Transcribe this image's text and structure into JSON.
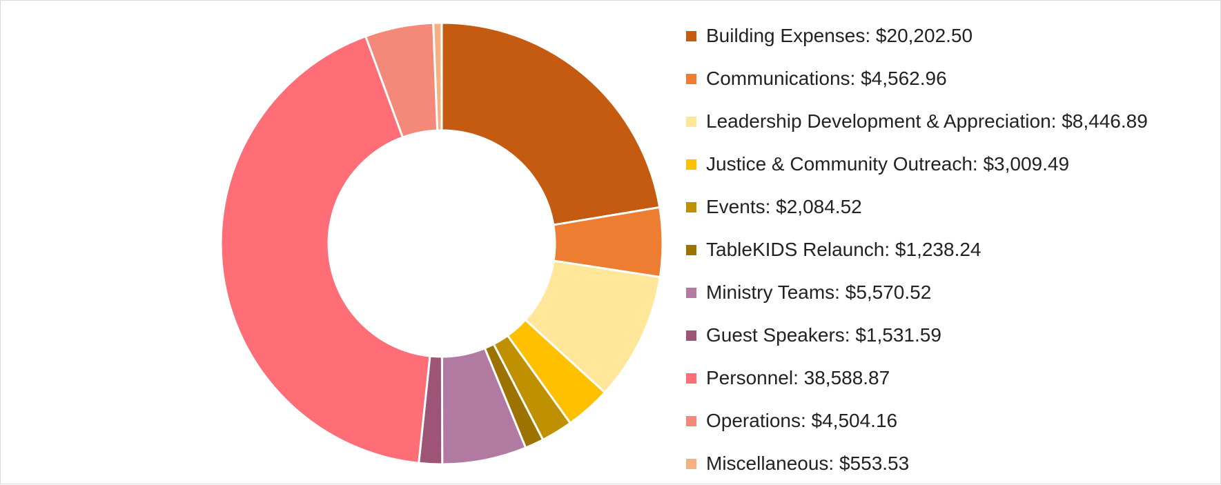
{
  "chart_data": {
    "type": "pie",
    "variant": "donut",
    "legend_position": "right",
    "start_angle_deg": 0,
    "direction": "clockwise",
    "slices": [
      {
        "label": "Building Expenses: $20,202.50",
        "value": 20202.5,
        "color": "#C55A11"
      },
      {
        "label": "Communications: $4,562.96",
        "value": 4562.96,
        "color": "#ED7D31"
      },
      {
        "label": "Leadership Development & Appreciation: $8,446.89",
        "value": 8446.89,
        "color": "#FFE699"
      },
      {
        "label": "Justice & Community Outreach: $3,009.49",
        "value": 3009.49,
        "color": "#FFC000"
      },
      {
        "label": "Events: $2,084.52",
        "value": 2084.52,
        "color": "#BF9000"
      },
      {
        "label": "TableKIDS Relaunch: $1,238.24",
        "value": 1238.24,
        "color": "#9C7200"
      },
      {
        "label": "Ministry Teams: $5,570.52",
        "value": 5570.52,
        "color": "#B07AA1"
      },
      {
        "label": "Guest Speakers: $1,531.59",
        "value": 1531.59,
        "color": "#9E5476"
      },
      {
        "label": "Personnel: 38,588.87",
        "value": 38588.87,
        "color": "#FF6D76"
      },
      {
        "label": "Operations: $4,504.16",
        "value": 4504.16,
        "color": "#F4897A"
      },
      {
        "label": "Miscellaneous: $553.53",
        "value": 553.53,
        "color": "#F4B183"
      }
    ]
  }
}
